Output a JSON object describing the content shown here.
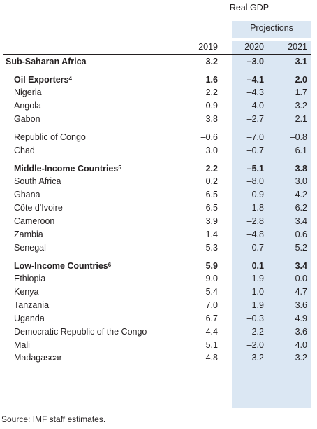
{
  "header": {
    "group_label": "Real GDP",
    "projections_label": "Projections",
    "years": [
      "2019",
      "2020",
      "2021"
    ]
  },
  "rows": [
    {
      "label": "Sub-Saharan Africa",
      "values": [
        "3.2",
        "–3.0",
        "3.1"
      ],
      "kind": "top"
    },
    {
      "label": "Oil Exporters",
      "note": "4",
      "values": [
        "1.6",
        "–4.1",
        "2.0"
      ],
      "kind": "group"
    },
    {
      "label": "Nigeria",
      "values": [
        "2.2",
        "–4.3",
        "1.7"
      ],
      "kind": "item"
    },
    {
      "label": "Angola",
      "values": [
        "–0.9",
        "–4.0",
        "3.2"
      ],
      "kind": "item"
    },
    {
      "label": "Gabon",
      "values": [
        "3.8",
        "–2.7",
        "2.1"
      ],
      "kind": "item"
    },
    {
      "label": "Republic of Congo",
      "values": [
        "–0.6",
        "–7.0",
        "–0.8"
      ],
      "kind": "item"
    },
    {
      "label": "Chad",
      "values": [
        "3.0",
        "–0.7",
        "6.1"
      ],
      "kind": "item"
    },
    {
      "label": "Middle-Income Countries",
      "note": "5",
      "values": [
        "2.2",
        "–5.1",
        "3.8"
      ],
      "kind": "group"
    },
    {
      "label": "South Africa",
      "values": [
        "0.2",
        "–8.0",
        "3.0"
      ],
      "kind": "item"
    },
    {
      "label": "Ghana",
      "values": [
        "6.5",
        "0.9",
        "4.2"
      ],
      "kind": "item"
    },
    {
      "label": "Côte d'Ivoire",
      "values": [
        "6.5",
        "1.8",
        "6.2"
      ],
      "kind": "item"
    },
    {
      "label": "Cameroon",
      "values": [
        "3.9",
        "–2.8",
        "3.4"
      ],
      "kind": "item"
    },
    {
      "label": "Zambia",
      "values": [
        "1.4",
        "–4.8",
        "0.6"
      ],
      "kind": "item"
    },
    {
      "label": "Senegal",
      "values": [
        "5.3",
        "–0.7",
        "5.2"
      ],
      "kind": "item"
    },
    {
      "label": "Low-Income Countries",
      "note": "6",
      "values": [
        "5.9",
        "0.1",
        "3.4"
      ],
      "kind": "group"
    },
    {
      "label": "Ethiopia",
      "values": [
        "9.0",
        "1.9",
        "0.0"
      ],
      "kind": "item"
    },
    {
      "label": "Kenya",
      "values": [
        "5.4",
        "1.0",
        "4.7"
      ],
      "kind": "item"
    },
    {
      "label": "Tanzania",
      "values": [
        "7.0",
        "1.9",
        "3.6"
      ],
      "kind": "item"
    },
    {
      "label": "Uganda",
      "values": [
        "6.7",
        "–0.3",
        "4.9"
      ],
      "kind": "item"
    },
    {
      "label": "Democratic Republic of the Congo",
      "values": [
        "4.4",
        "–2.2",
        "3.6"
      ],
      "kind": "item"
    },
    {
      "label": "Mali",
      "values": [
        "5.1",
        "–2.0",
        "4.0"
      ],
      "kind": "item"
    },
    {
      "label": "Madagascar",
      "values": [
        "4.8",
        "–3.2",
        "3.2"
      ],
      "kind": "item"
    }
  ],
  "footer": {
    "source": "Source: IMF staff estimates."
  }
}
